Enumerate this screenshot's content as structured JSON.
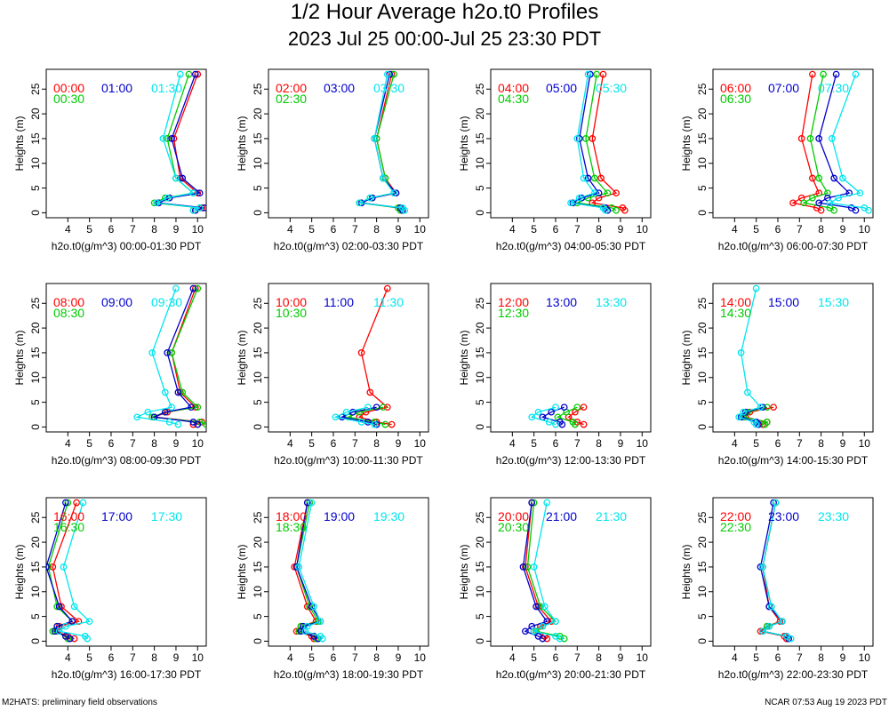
{
  "title": "1/2 Hour Average h2o.t0 Profiles",
  "subtitle": "2023 Jul 25 00:00-Jul 25 23:30 PDT",
  "footer_left": "M2HATS: preliminary field observations",
  "footer_right": "NCAR 07:53 Aug 19 2023 PDT",
  "colors": {
    "s1": "#ff0000",
    "s2": "#00cc00",
    "s3": "#0000cc",
    "s4": "#00e5ee"
  },
  "chart_data": [
    {
      "type": "line",
      "xlabel": "h2o.t0(g/m^3) 00:00-01:30 PDT",
      "ylabel": "Heights (m)",
      "xlim": [
        3,
        10.4
      ],
      "ylim": [
        -1,
        29
      ],
      "xticks": [
        4,
        5,
        6,
        7,
        8,
        9,
        10
      ],
      "yticks": [
        0,
        5,
        10,
        15,
        20,
        25
      ],
      "heights": [
        0.5,
        1,
        2,
        3,
        4,
        7,
        15,
        28
      ],
      "series": [
        {
          "name": "00:00",
          "values": [
            9.9,
            10.2,
            8.2,
            8.7,
            10.0,
            9.2,
            8.9,
            10.0
          ]
        },
        {
          "name": "00:30",
          "values": [
            9.8,
            10.1,
            8.0,
            8.5,
            9.8,
            9.0,
            8.6,
            9.6
          ]
        },
        {
          "name": "01:00",
          "values": [
            9.9,
            10.3,
            8.2,
            8.7,
            10.1,
            9.3,
            8.8,
            9.9
          ]
        },
        {
          "name": "01:30",
          "values": [
            9.8,
            10.1,
            8.1,
            8.6,
            9.8,
            9.0,
            8.4,
            9.2
          ]
        }
      ]
    },
    {
      "type": "line",
      "xlabel": "h2o.t0(g/m^3) 02:00-03:30 PDT",
      "ylabel": "Heights (m)",
      "xlim": [
        3,
        10.4
      ],
      "ylim": [
        -1,
        29
      ],
      "xticks": [
        4,
        5,
        6,
        7,
        8,
        9,
        10
      ],
      "yticks": [
        0,
        5,
        10,
        15,
        20,
        25
      ],
      "heights": [
        0.5,
        1,
        2,
        3,
        4,
        7,
        15,
        28
      ],
      "series": [
        {
          "name": "02:00",
          "values": [
            9.2,
            9.1,
            7.3,
            7.8,
            8.9,
            8.4,
            8.0,
            8.7
          ]
        },
        {
          "name": "02:30",
          "values": [
            9.1,
            9.0,
            7.2,
            7.7,
            8.8,
            8.4,
            8.0,
            8.8
          ]
        },
        {
          "name": "03:00",
          "values": [
            9.2,
            9.1,
            7.3,
            7.8,
            8.9,
            8.3,
            7.9,
            8.6
          ]
        },
        {
          "name": "03:30",
          "values": [
            9.3,
            9.2,
            7.2,
            7.7,
            8.8,
            8.3,
            7.9,
            8.5
          ]
        }
      ]
    },
    {
      "type": "line",
      "xlabel": "h2o.t0(g/m^3) 04:00-05:30 PDT",
      "ylabel": "Heights (m)",
      "xlim": [
        3,
        10.4
      ],
      "ylim": [
        -1,
        29
      ],
      "xticks": [
        4,
        5,
        6,
        7,
        8,
        9,
        10
      ],
      "yticks": [
        0,
        5,
        10,
        15,
        20,
        25
      ],
      "heights": [
        0.5,
        1,
        2,
        3,
        4,
        7,
        15,
        28
      ],
      "series": [
        {
          "name": "04:00",
          "values": [
            9.2,
            9.1,
            7.7,
            8.0,
            8.8,
            8.1,
            7.7,
            8.2
          ]
        },
        {
          "name": "04:30",
          "values": [
            8.8,
            8.6,
            7.0,
            7.5,
            8.4,
            7.8,
            7.4,
            7.9
          ]
        },
        {
          "name": "05:00",
          "values": [
            8.4,
            8.3,
            6.8,
            7.2,
            8.0,
            7.5,
            7.1,
            7.6
          ]
        },
        {
          "name": "05:30",
          "values": [
            8.3,
            8.2,
            6.7,
            7.1,
            7.8,
            7.3,
            7.0,
            7.5
          ]
        }
      ]
    },
    {
      "type": "line",
      "xlabel": "h2o.t0(g/m^3) 06:00-07:30 PDT",
      "ylabel": "Heights (m)",
      "xlim": [
        3,
        10.4
      ],
      "ylim": [
        -1,
        29
      ],
      "xticks": [
        4,
        5,
        6,
        7,
        8,
        9,
        10
      ],
      "yticks": [
        0,
        5,
        10,
        15,
        20,
        25
      ],
      "heights": [
        0.5,
        1,
        2,
        3,
        4,
        7,
        15,
        28
      ],
      "series": [
        {
          "name": "06:00",
          "values": [
            8.0,
            7.8,
            6.7,
            7.1,
            7.9,
            7.6,
            7.1,
            7.6
          ]
        },
        {
          "name": "06:30",
          "values": [
            8.6,
            8.4,
            7.2,
            7.6,
            8.3,
            7.9,
            7.5,
            8.1
          ]
        },
        {
          "name": "07:00",
          "values": [
            9.6,
            9.4,
            7.9,
            8.3,
            9.3,
            8.6,
            7.9,
            8.7
          ]
        },
        {
          "name": "07:30",
          "values": [
            10.2,
            10.0,
            8.4,
            8.8,
            9.8,
            9.0,
            8.5,
            9.6
          ]
        }
      ]
    },
    {
      "type": "line",
      "xlabel": "h2o.t0(g/m^3) 08:00-09:30 PDT",
      "ylabel": "Heights (m)",
      "xlim": [
        3,
        10.4
      ],
      "ylim": [
        -1,
        29
      ],
      "xticks": [
        4,
        5,
        6,
        7,
        8,
        9,
        10
      ],
      "yticks": [
        0,
        5,
        10,
        15,
        20,
        25
      ],
      "heights": [
        0.5,
        1,
        2,
        3,
        4,
        7,
        15,
        28
      ],
      "series": [
        {
          "name": "08:00",
          "values": [
            9.8,
            10.2,
            8.0,
            8.6,
            9.9,
            9.2,
            8.8,
            9.9
          ]
        },
        {
          "name": "08:30",
          "values": [
            10.4,
            10.1,
            7.9,
            8.5,
            10.0,
            9.3,
            8.8,
            10.0
          ]
        },
        {
          "name": "09:00",
          "values": [
            10.0,
            9.8,
            8.0,
            8.5,
            9.7,
            9.1,
            8.6,
            9.8
          ]
        },
        {
          "name": "09:30",
          "values": [
            9.1,
            8.7,
            7.2,
            7.7,
            8.8,
            8.5,
            7.9,
            9.0
          ]
        }
      ]
    },
    {
      "type": "line",
      "xlabel": "h2o.t0(g/m^3) 10:00-11:30 PDT",
      "ylabel": "Heights (m)",
      "xlim": [
        3,
        10.4
      ],
      "ylim": [
        -1,
        29
      ],
      "xticks": [
        4,
        5,
        6,
        7,
        8,
        9,
        10
      ],
      "yticks": [
        0,
        5,
        10,
        15,
        20,
        25
      ],
      "heights": [
        0.5,
        1,
        2,
        3,
        4,
        7,
        15,
        28
      ],
      "series": [
        {
          "name": "10:00",
          "values": [
            8.7,
            8.0,
            7.2,
            7.5,
            8.5,
            7.7,
            7.3,
            8.5
          ]
        },
        {
          "name": "10:30",
          "values": [
            8.4,
            7.9,
            6.7,
            7.2,
            8.3
          ]
        },
        {
          "name": "11:00",
          "values": [
            8.0,
            7.6,
            6.4,
            6.9,
            8.0
          ]
        },
        {
          "name": "11:30",
          "values": [
            7.9,
            7.3,
            6.1,
            6.6,
            7.6
          ]
        }
      ]
    },
    {
      "type": "line",
      "xlabel": "h2o.t0(g/m^3) 12:00-13:30 PDT",
      "ylabel": "Heights (m)",
      "xlim": [
        3,
        10.4
      ],
      "ylim": [
        -1,
        29
      ],
      "xticks": [
        4,
        5,
        6,
        7,
        8,
        9,
        10
      ],
      "yticks": [
        0,
        5,
        10,
        15,
        20,
        25
      ],
      "heights": [
        0.5,
        1,
        2,
        3,
        4
      ],
      "series": [
        {
          "name": "12:00",
          "values": [
            7.3,
            7.0,
            6.6,
            6.9,
            7.3
          ]
        },
        {
          "name": "12:30",
          "values": [
            6.9,
            6.8,
            6.1,
            6.5,
            7.0
          ]
        },
        {
          "name": "13:00",
          "values": [
            6.3,
            6.2,
            5.4,
            5.8,
            6.4
          ]
        },
        {
          "name": "13:30",
          "values": [
            6.0,
            5.7,
            4.9,
            5.2,
            6.0
          ]
        }
      ]
    },
    {
      "type": "line",
      "xlabel": "h2o.t0(g/m^3) 14:00-15:30 PDT",
      "ylabel": "Heights (m)",
      "xlim": [
        3,
        10.4
      ],
      "ylim": [
        -1,
        29
      ],
      "xticks": [
        4,
        5,
        6,
        7,
        8,
        9,
        10
      ],
      "yticks": [
        0,
        5,
        10,
        15,
        20,
        25
      ],
      "heights": [
        0.5,
        1,
        2,
        3,
        4,
        7,
        15,
        28
      ],
      "series": [
        {
          "name": "14:00",
          "values": [
            5.3,
            5.5,
            4.5,
            4.7,
            5.8
          ]
        },
        {
          "name": "14:30",
          "values": [
            5.4,
            5.5,
            4.4,
            4.6,
            5.5
          ]
        },
        {
          "name": "15:00",
          "values": [
            5.1,
            5.0,
            4.3,
            4.5,
            5.3
          ]
        },
        {
          "name": "15:30",
          "values": [
            5.0,
            4.9,
            4.2,
            4.4,
            5.2,
            4.6,
            4.3,
            5.0
          ]
        }
      ]
    },
    {
      "type": "line",
      "xlabel": "h2o.t0(g/m^3) 16:00-17:30 PDT",
      "ylabel": "Heights (m)",
      "xlim": [
        3,
        10.4
      ],
      "ylim": [
        -1,
        29
      ],
      "xticks": [
        4,
        5,
        6,
        7,
        8,
        9,
        10
      ],
      "yticks": [
        0,
        5,
        10,
        15,
        20,
        25
      ],
      "heights": [
        0.5,
        1,
        2,
        3,
        4,
        7,
        15,
        28
      ],
      "series": [
        {
          "name": "16:00",
          "values": [
            4.3,
            4.0,
            3.5,
            3.6,
            4.5,
            3.7,
            3.3,
            4.4
          ]
        },
        {
          "name": "16:30",
          "values": [
            4.0,
            3.9,
            3.3,
            3.5,
            4.2,
            3.5,
            3.1,
            4.0
          ]
        },
        {
          "name": "17:00",
          "values": [
            4.1,
            3.9,
            3.4,
            3.5,
            4.2,
            3.6,
            3.0,
            3.9
          ]
        },
        {
          "name": "17:30",
          "values": [
            4.9,
            4.8,
            3.6,
            3.9,
            5.0,
            4.3,
            3.8,
            4.7
          ]
        }
      ]
    },
    {
      "type": "line",
      "xlabel": "h2o.t0(g/m^3) 18:00-19:30 PDT",
      "ylabel": "Heights (m)",
      "xlim": [
        3,
        10.4
      ],
      "ylim": [
        -1,
        29
      ],
      "xticks": [
        4,
        5,
        6,
        7,
        8,
        9,
        10
      ],
      "yticks": [
        0,
        5,
        10,
        15,
        20,
        25
      ],
      "heights": [
        0.5,
        1,
        2,
        3,
        4,
        7,
        15,
        28
      ],
      "series": [
        {
          "name": "18:00",
          "values": [
            5.1,
            5.0,
            4.3,
            4.5,
            5.2,
            4.8,
            4.2,
            4.8
          ]
        },
        {
          "name": "18:30",
          "values": [
            5.2,
            5.1,
            4.4,
            4.5,
            5.3,
            4.9,
            4.3,
            4.9
          ]
        },
        {
          "name": "19:00",
          "values": [
            5.3,
            5.1,
            4.5,
            4.6,
            5.4,
            5.0,
            4.3,
            4.8
          ]
        },
        {
          "name": "19:30",
          "values": [
            5.5,
            5.4,
            4.7,
            4.8,
            5.4,
            5.1,
            4.4,
            5.0
          ]
        }
      ]
    },
    {
      "type": "line",
      "xlabel": "h2o.t0(g/m^3) 20:00-21:30 PDT",
      "ylabel": "Heights (m)",
      "xlim": [
        3,
        10.4
      ],
      "ylim": [
        -1,
        29
      ],
      "xticks": [
        4,
        5,
        6,
        7,
        8,
        9,
        10
      ],
      "yticks": [
        0,
        5,
        10,
        15,
        20,
        25
      ],
      "heights": [
        0.5,
        1,
        2,
        3,
        4,
        7,
        15,
        28
      ],
      "series": [
        {
          "name": "20:00",
          "values": [
            5.6,
            5.5,
            5.0,
            5.3,
            5.8,
            5.2,
            4.6,
            4.9
          ]
        },
        {
          "name": "20:30",
          "values": [
            6.4,
            6.2,
            5.1,
            5.4,
            6.0,
            5.3,
            4.7,
            5.0
          ]
        },
        {
          "name": "21:00",
          "values": [
            5.4,
            5.2,
            4.6,
            4.9,
            5.6,
            5.1,
            4.5,
            4.9
          ]
        },
        {
          "name": "21:30",
          "values": [
            6.2,
            6.0,
            5.0,
            5.4,
            6.0,
            5.5,
            5.0,
            5.6
          ]
        }
      ]
    },
    {
      "type": "line",
      "xlabel": "h2o.t0(g/m^3) 22:00-23:30 PDT",
      "ylabel": "Heights (m)",
      "xlim": [
        3,
        10.4
      ],
      "ylim": [
        -1,
        29
      ],
      "xticks": [
        4,
        5,
        6,
        7,
        8,
        9,
        10
      ],
      "yticks": [
        0,
        5,
        10,
        15,
        20,
        25
      ],
      "heights": [
        0.5,
        1,
        2,
        3,
        4,
        7,
        15,
        28
      ],
      "series": [
        {
          "name": "22:00",
          "values": [
            6.4,
            6.3,
            5.2,
            5.5,
            6.1,
            5.6,
            5.3,
            5.9
          ]
        },
        {
          "name": "22:30",
          "values": [
            6.5,
            6.4,
            5.3,
            5.5,
            6.2,
            5.7,
            5.3,
            5.9
          ]
        },
        {
          "name": "23:00",
          "values": [
            6.5,
            6.4,
            5.3,
            5.6,
            6.2,
            5.6,
            5.2,
            5.8
          ]
        },
        {
          "name": "23:30",
          "values": [
            6.6,
            6.4,
            5.3,
            5.6,
            6.2,
            5.7,
            5.3,
            5.9
          ]
        }
      ]
    }
  ]
}
